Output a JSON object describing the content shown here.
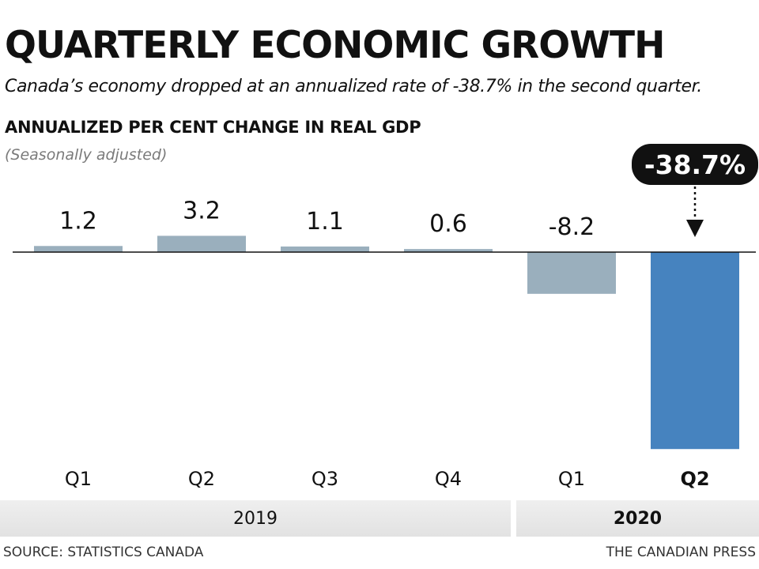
{
  "header": {
    "title": "QUARTERLY ECONOMIC GROWTH",
    "subtitle": "Canada’s economy dropped at an annualized rate of -38.7% in the second quarter.",
    "chart_heading": "ANNUALIZED PER CENT CHANGE IN REAL GDP",
    "chart_note": "(Seasonally adjusted)"
  },
  "chart_data": {
    "type": "bar",
    "title": "ANNUALIZED PER CENT CHANGE IN REAL GDP",
    "subtitle": "(Seasonally adjusted)",
    "categories": [
      "Q1",
      "Q2",
      "Q3",
      "Q4",
      "Q1",
      "Q2"
    ],
    "groups": [
      {
        "label": "2019",
        "categories": [
          "Q1",
          "Q2",
          "Q3",
          "Q4"
        ]
      },
      {
        "label": "2020",
        "categories": [
          "Q1",
          "Q2"
        ]
      }
    ],
    "values": [
      1.2,
      3.2,
      1.1,
      0.6,
      -8.2,
      -38.7
    ],
    "value_labels": [
      "1.2",
      "3.2",
      "1.1",
      "0.6",
      "-8.2",
      "-38.7%"
    ],
    "highlight_index": 5,
    "ylim": [
      -38.7,
      3.2
    ],
    "grid": false,
    "colors": {
      "default": "#9aafbd",
      "highlight": "#4683bf",
      "callout": "#111111"
    }
  },
  "footer": {
    "source": "SOURCE: STATISTICS CANADA",
    "credit": "THE CANADIAN PRESS"
  }
}
